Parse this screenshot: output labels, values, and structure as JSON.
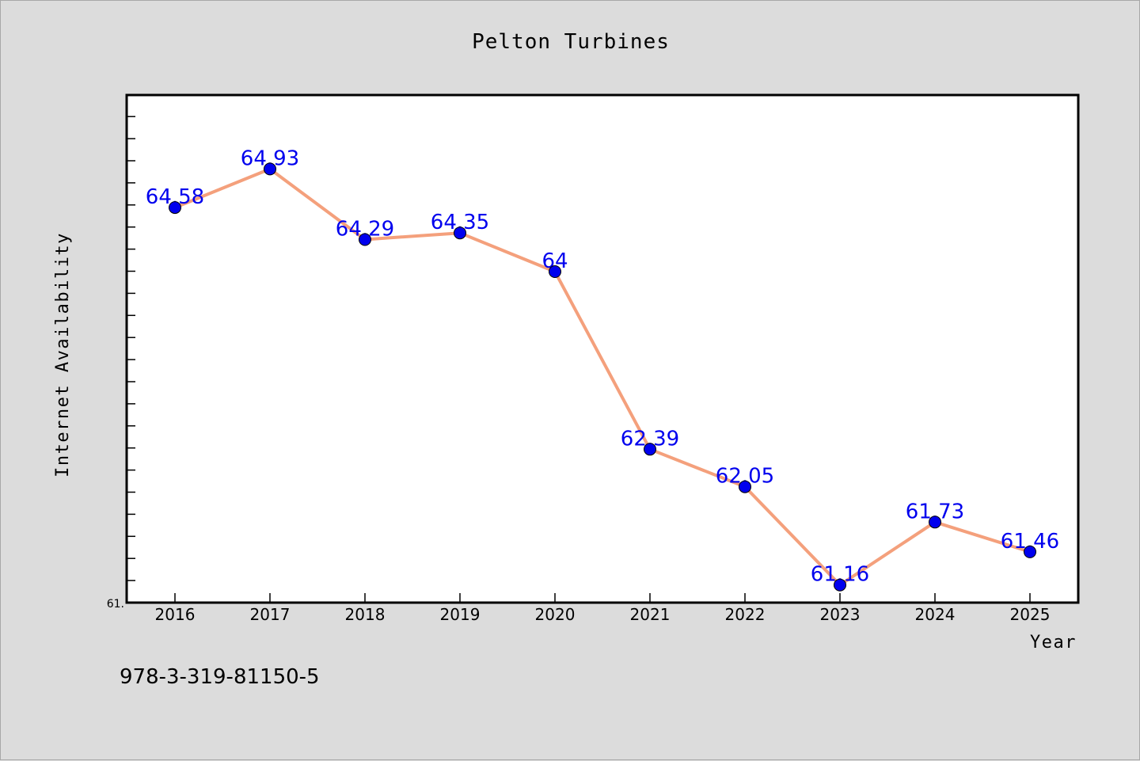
{
  "chart_data": {
    "type": "line",
    "title": "Pelton Turbines",
    "xlabel": "Year",
    "ylabel": "Internet Availability",
    "x": [
      "2016",
      "2017",
      "2018",
      "2019",
      "2020",
      "2021",
      "2022",
      "2023",
      "2024",
      "2025"
    ],
    "series": [
      {
        "values": [
          64.58,
          64.93,
          64.29,
          64.35,
          64.0,
          62.39,
          62.05,
          61.16,
          61.73,
          61.46
        ],
        "labels": [
          "64.58",
          "64.93",
          "64.29",
          "64.35",
          "64",
          "62.39",
          "62.05",
          "61.16",
          "61.73",
          "61.46"
        ],
        "line_color": "#f4a07c",
        "marker_color": "#0000ee"
      }
    ],
    "ylim": [
      61.0,
      65.6
    ],
    "y_tick_label": "61.",
    "grid": false,
    "legend": "none"
  },
  "footer": {
    "isbn": "978-3-319-81150-5"
  },
  "colors": {
    "background": "#dcdcdc",
    "plot_background": "#ffffff",
    "line": "#f4a07c",
    "marker": "#0000ee",
    "label": "#0000ee"
  }
}
